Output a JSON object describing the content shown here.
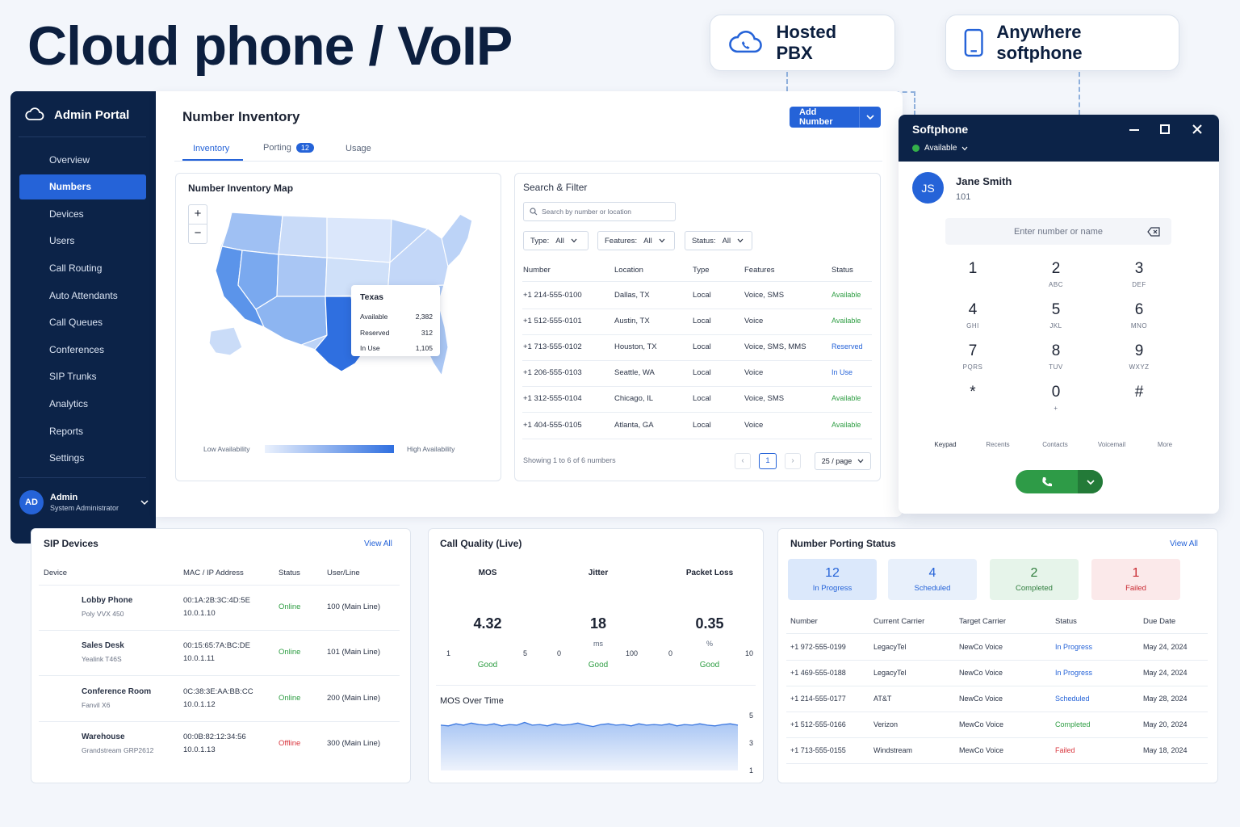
{
  "hero_title": "Cloud phone / VoIP",
  "features": [
    {
      "label": "Hosted PBX",
      "icon": "cloud-phone-icon"
    },
    {
      "label": "Anywhere softphone",
      "icon": "mobile-phone-icon"
    }
  ],
  "sidebar": {
    "brand": "Admin Portal",
    "items": [
      {
        "label": "Overview",
        "icon": "home-icon",
        "active": false
      },
      {
        "label": "Numbers",
        "icon": "phone-icon",
        "active": true
      },
      {
        "label": "Devices",
        "icon": "device-icon",
        "active": false
      },
      {
        "label": "Users",
        "icon": "user-icon",
        "active": false
      },
      {
        "label": "Call Routing",
        "icon": "routing-icon",
        "active": false
      },
      {
        "label": "Auto Attendants",
        "icon": "attendant-icon",
        "active": false
      },
      {
        "label": "Call Queues",
        "icon": "queue-icon",
        "active": false
      },
      {
        "label": "Conferences",
        "icon": "conference-icon",
        "active": false
      },
      {
        "label": "SIP Trunks",
        "icon": "trunk-icon",
        "active": false
      },
      {
        "label": "Analytics",
        "icon": "analytics-icon",
        "active": false
      },
      {
        "label": "Reports",
        "icon": "reports-icon",
        "active": false
      },
      {
        "label": "Settings",
        "icon": "gear-icon",
        "active": false
      }
    ],
    "user": {
      "initials": "AD",
      "name": "Admin",
      "role": "System Administrator"
    }
  },
  "inventory": {
    "title": "Number Inventory",
    "add_button": "Add Number",
    "tabs": [
      {
        "label": "Inventory",
        "active": true
      },
      {
        "label": "Porting",
        "badge": "12"
      },
      {
        "label": "Usage"
      }
    ],
    "map": {
      "title": "Number Inventory Map",
      "zoom_in": "+",
      "zoom_out": "−",
      "tooltip": {
        "state": "Texas",
        "rows": [
          {
            "label": "Available",
            "value": "2,382"
          },
          {
            "label": "Reserved",
            "value": "312"
          },
          {
            "label": "In Use",
            "value": "1,105"
          }
        ]
      },
      "legend_low": "Low Availability",
      "legend_high": "High Availability"
    },
    "search": {
      "title": "Search & Filter",
      "placeholder": "Search by number or location",
      "filters": [
        {
          "label": "Type:",
          "value": "All"
        },
        {
          "label": "Features:",
          "value": "All"
        },
        {
          "label": "Status:",
          "value": "All"
        }
      ],
      "columns": [
        "Number",
        "Location",
        "Type",
        "Features",
        "Status"
      ],
      "rows": [
        {
          "number": "+1 214-555-0100",
          "location": "Dallas, TX",
          "type": "Local",
          "features": "Voice, SMS",
          "status": "Available"
        },
        {
          "number": "+1 512-555-0101",
          "location": "Austin, TX",
          "type": "Local",
          "features": "Voice",
          "status": "Available"
        },
        {
          "number": "+1 713-555-0102",
          "location": "Houston, TX",
          "type": "Local",
          "features": "Voice, SMS, MMS",
          "status": "Reserved"
        },
        {
          "number": "+1 206-555-0103",
          "location": "Seattle, WA",
          "type": "Local",
          "features": "Voice",
          "status": "In Use"
        },
        {
          "number": "+1 312-555-0104",
          "location": "Chicago, IL",
          "type": "Local",
          "features": "Voice, SMS",
          "status": "Available"
        },
        {
          "number": "+1 404-555-0105",
          "location": "Atlanta, GA",
          "type": "Local",
          "features": "Voice",
          "status": "Available"
        }
      ],
      "footer": "Showing 1 to 6 of 6 numbers",
      "page": "1",
      "per_page": "25 / page"
    }
  },
  "softphone": {
    "title": "Softphone",
    "status": "Available",
    "user": {
      "initials": "JS",
      "name": "Jane Smith",
      "ext": "101"
    },
    "input_placeholder": "Enter number or name",
    "keys": [
      {
        "d": "1",
        "l": ""
      },
      {
        "d": "2",
        "l": "ABC"
      },
      {
        "d": "3",
        "l": "DEF"
      },
      {
        "d": "4",
        "l": "GHI"
      },
      {
        "d": "5",
        "l": "JKL"
      },
      {
        "d": "6",
        "l": "MNO"
      },
      {
        "d": "7",
        "l": "PQRS"
      },
      {
        "d": "8",
        "l": "TUV"
      },
      {
        "d": "9",
        "l": "WXYZ"
      },
      {
        "d": "*",
        "l": ""
      },
      {
        "d": "0",
        "l": "+"
      },
      {
        "d": "#",
        "l": ""
      }
    ],
    "tabs": [
      "Keypad",
      "Recents",
      "Contacts",
      "Voicemail",
      "More"
    ]
  },
  "sip_devices": {
    "title": "SIP Devices",
    "view_all": "View All",
    "columns": [
      "Device",
      "MAC / IP Address",
      "Status",
      "User/Line"
    ],
    "rows": [
      {
        "name": "Lobby Phone",
        "model": "Poly VVX 450",
        "mac": "00:1A:2B:3C:4D:5E",
        "ip": "10.0.1.10",
        "status": "Online",
        "line": "100 (Main Line)"
      },
      {
        "name": "Sales Desk",
        "model": "Yealink T46S",
        "mac": "00:15:65:7A:BC:DE",
        "ip": "10.0.1.11",
        "status": "Online",
        "line": "101 (Main Line)"
      },
      {
        "name": "Conference Room",
        "model": "Fanvil X6",
        "mac": "0C:38:3E:AA:BB:CC",
        "ip": "10.0.1.12",
        "status": "Online",
        "line": "200 (Main Line)"
      },
      {
        "name": "Warehouse",
        "model": "Grandstream GRP2612",
        "mac": "00:0B:82:12:34:56",
        "ip": "10.0.1.13",
        "status": "Offline",
        "line": "300 (Main Line)"
      }
    ]
  },
  "call_quality": {
    "title": "Call Quality (Live)",
    "gauges": [
      {
        "label": "MOS",
        "value": "4.32",
        "unit": "",
        "min": "1",
        "max": "5",
        "rating": "Good",
        "fraction": 0.83
      },
      {
        "label": "Jitter",
        "value": "18",
        "unit": "ms",
        "min": "0",
        "max": "100",
        "rating": "Good",
        "fraction": 0.82
      },
      {
        "label": "Packet Loss",
        "value": "0.35",
        "unit": "%",
        "min": "0",
        "max": "10",
        "rating": "Good",
        "fraction": 0.97
      }
    ],
    "chart_title": "MOS Over Time",
    "chart_data": {
      "type": "area",
      "title": "MOS Over Time",
      "ylim": [
        1,
        5
      ],
      "yticks": [
        "5",
        "3",
        "1"
      ],
      "values": [
        4.3,
        4.25,
        4.4,
        4.3,
        4.45,
        4.35,
        4.3,
        4.4,
        4.25,
        4.35,
        4.3,
        4.5,
        4.3,
        4.35,
        4.25,
        4.4,
        4.3,
        4.35,
        4.45,
        4.3,
        4.2,
        4.35,
        4.4,
        4.3,
        4.35,
        4.25,
        4.4,
        4.3,
        4.35,
        4.3,
        4.4,
        4.25,
        4.35,
        4.3,
        4.4,
        4.3,
        4.25,
        4.35,
        4.4,
        4.3
      ]
    }
  },
  "porting": {
    "title": "Number Porting Status",
    "view_all": "View All",
    "stats": [
      {
        "value": "12",
        "label": "In Progress",
        "bg": "#dbe8fb",
        "fg": "#2563d8"
      },
      {
        "value": "4",
        "label": "Scheduled",
        "bg": "#e8f0fb",
        "fg": "#2563d8"
      },
      {
        "value": "2",
        "label": "Completed",
        "bg": "#e6f4ea",
        "fg": "#2f7d3d"
      },
      {
        "value": "1",
        "label": "Failed",
        "bg": "#fbe9ea",
        "fg": "#c92a33"
      }
    ],
    "columns": [
      "Number",
      "Current Carrier",
      "Target Carrier",
      "Status",
      "Due Date"
    ],
    "rows": [
      {
        "number": "+1 972-555-0199",
        "current": "LegacyTel",
        "target": "NewCo Voice",
        "status": "In Progress",
        "due": "May 24, 2024"
      },
      {
        "number": "+1 469-555-0188",
        "current": "LegacyTel",
        "target": "NewCo Voice",
        "status": "In Progress",
        "due": "May 24, 2024"
      },
      {
        "number": "+1 214-555-0177",
        "current": "AT&T",
        "target": "NewCo Voice",
        "status": "Scheduled",
        "due": "May 28, 2024"
      },
      {
        "number": "+1 512-555-0166",
        "current": "Verizon",
        "target": "MewCo Voice",
        "status": "Completed",
        "due": "May 20, 2024"
      },
      {
        "number": "+1 713-555-0155",
        "current": "Windstream",
        "target": "MewCo Voice",
        "status": "Failed",
        "due": "May 18, 2024"
      }
    ]
  },
  "colors": {
    "accent": "#2563d8",
    "sidebar": "#0c2348",
    "good": "#2f9e44",
    "bad": "#d9363e"
  }
}
